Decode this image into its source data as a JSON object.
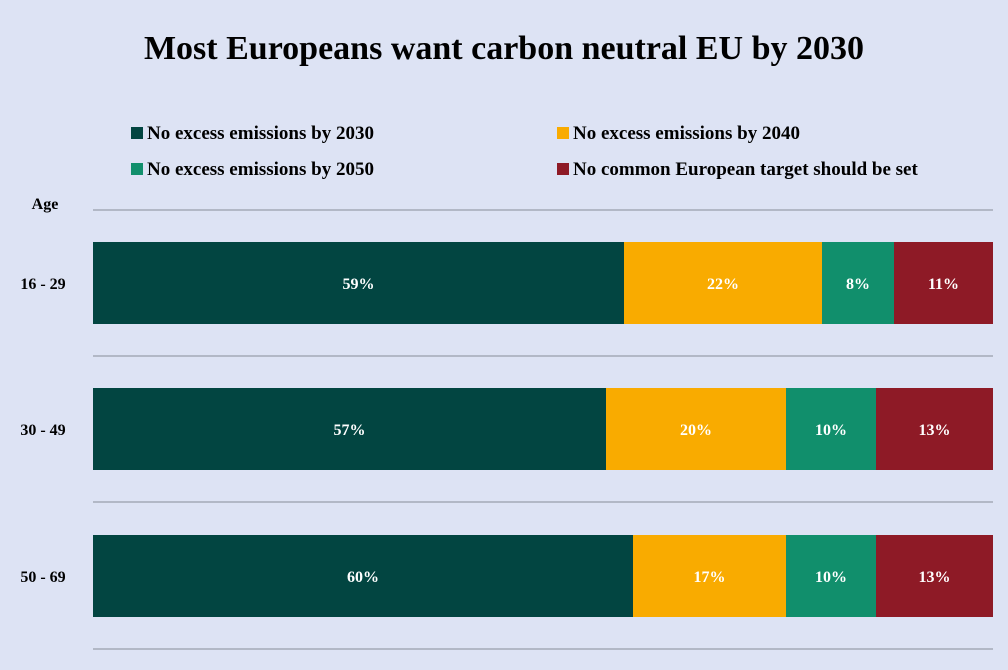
{
  "chart_data": {
    "type": "bar",
    "orientation": "horizontal",
    "stacked": true,
    "title": "Most Europeans want carbon neutral EU by 2030",
    "ylabel": "Age",
    "xlim": [
      0,
      100
    ],
    "categories": [
      "16 - 29",
      "30 - 49",
      "50 - 69"
    ],
    "series": [
      {
        "name": "No excess emissions by 2030",
        "color": "#024541",
        "values": [
          59,
          57,
          60
        ],
        "labels": [
          "59%",
          "57%",
          "60%"
        ]
      },
      {
        "name": "No excess emissions by 2040",
        "color": "#f9ab00",
        "values": [
          22,
          20,
          17
        ],
        "labels": [
          "22%",
          "20%",
          "17%"
        ]
      },
      {
        "name": "No excess emissions by 2050",
        "color": "#118f6c",
        "values": [
          8,
          10,
          10
        ],
        "labels": [
          "8%",
          "10%",
          "10%"
        ]
      },
      {
        "name": "No common European target should be set",
        "color": "#8e1a26",
        "values": [
          11,
          13,
          13
        ],
        "labels": [
          "11%",
          "13%",
          "13%"
        ]
      }
    ],
    "legend_position": "top",
    "grid": true
  }
}
